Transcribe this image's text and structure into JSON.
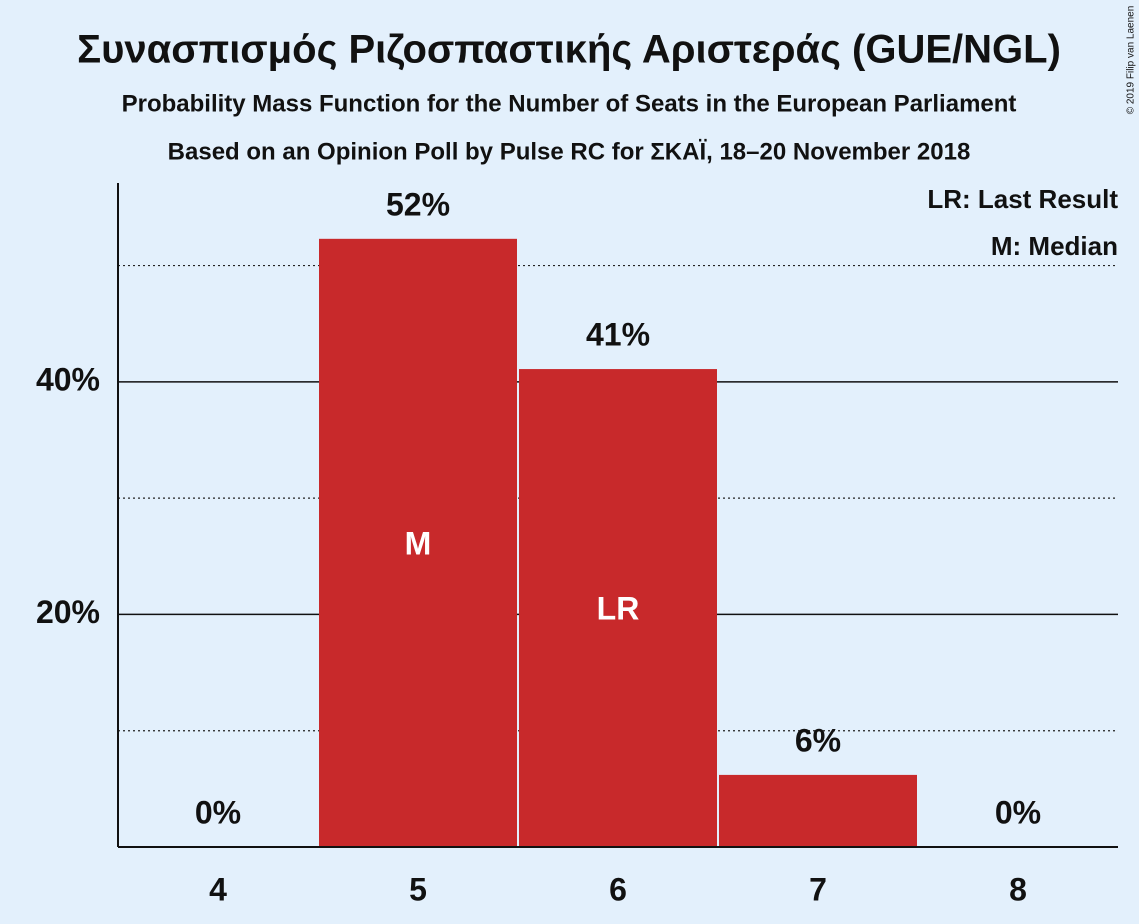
{
  "chart_data": {
    "type": "bar",
    "title": "Συνασπισμός Ριζοσπαστικής Αριστεράς (GUE/NGL)",
    "subtitle": "Probability Mass Function for the Number of Seats in the European Parliament",
    "subtitle2": "Based on an Opinion Poll by Pulse RC for ΣΚΑΪ, 18–20 November 2018",
    "copyright": "© 2019 Filip van Laenen",
    "legend": [
      "LR: Last Result",
      "M: Median"
    ],
    "categories": [
      "4",
      "5",
      "6",
      "7",
      "8"
    ],
    "values": [
      0,
      52.3,
      41.1,
      6.2,
      0
    ],
    "value_labels": [
      "0%",
      "52%",
      "41%",
      "6%",
      "0%"
    ],
    "annotations": [
      {
        "category": "5",
        "text": "M"
      },
      {
        "category": "6",
        "text": "LR"
      }
    ],
    "color": "#c8292b",
    "ylim": [
      0,
      57.1
    ],
    "yticks": [
      {
        "value": 20,
        "label": "20%"
      },
      {
        "value": 40,
        "label": "40%"
      }
    ],
    "minor_yticks": [
      10,
      30,
      50
    ],
    "grid": true
  }
}
